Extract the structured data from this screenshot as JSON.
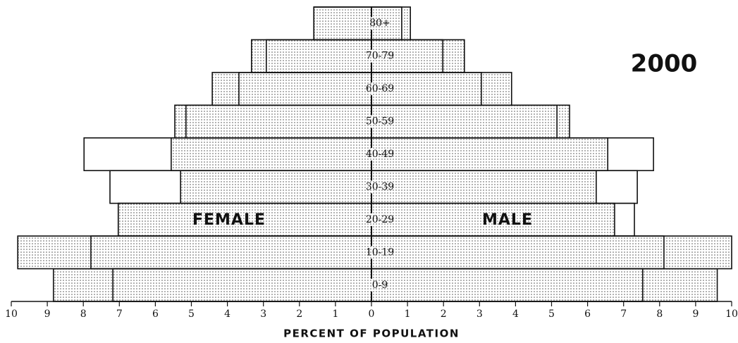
{
  "chart_data": {
    "type": "pyramid",
    "title": "2000",
    "x_label": "PERCENT OF POPULATION",
    "categories": [
      "0-9",
      "10-19",
      "20-29",
      "30-39",
      "40-49",
      "50-59",
      "60-69",
      "70-79",
      "80+"
    ],
    "sides": [
      {
        "label": "FEMALE",
        "dotted": [
          8.83,
          9.82,
          7.03,
          5.3,
          5.56,
          5.46,
          4.42,
          3.33,
          1.6
        ],
        "outlined": [
          7.18,
          7.79,
          7.03,
          7.26,
          7.98,
          5.15,
          3.68,
          2.92,
          1.6
        ]
      },
      {
        "label": "MALE",
        "dotted": [
          9.6,
          10.0,
          6.75,
          6.24,
          6.56,
          5.5,
          3.89,
          2.58,
          1.08
        ],
        "outlined": [
          7.53,
          8.12,
          7.3,
          7.38,
          7.83,
          5.15,
          3.05,
          1.98,
          0.84
        ]
      }
    ],
    "xlim": [
      0,
      10
    ],
    "xticks": [
      0,
      1,
      2,
      3,
      4,
      5,
      6,
      7,
      8,
      9,
      10
    ]
  }
}
